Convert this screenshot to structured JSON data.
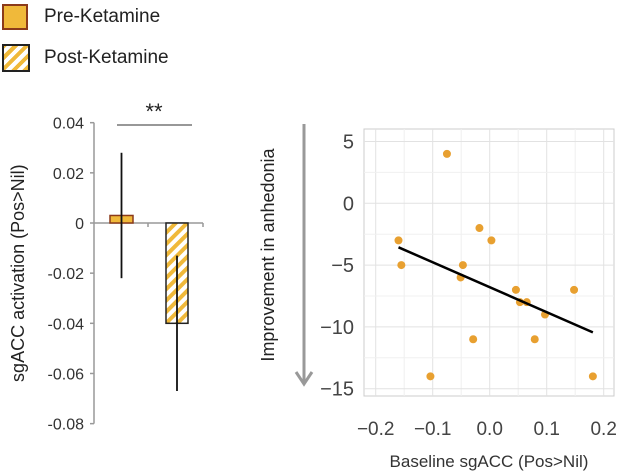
{
  "legend": [
    {
      "label": "Pre-Ketamine",
      "fill": "#f0b93a",
      "border": "#8b3a1a",
      "pattern": "solid"
    },
    {
      "label": "Post-Ketamine",
      "fill": "#f0b93a",
      "border": "#222222",
      "pattern": "hatched"
    }
  ],
  "chart_data": [
    {
      "type": "bar",
      "categories": [
        "Pre-Ketamine",
        "Post-Ketamine"
      ],
      "values": [
        0.003,
        -0.04
      ],
      "error_low": [
        -0.022,
        -0.067
      ],
      "error_high": [
        0.028,
        -0.013
      ],
      "ylabel": "sgACC activation (Pos>Nil)",
      "xlabel": "",
      "ylim": [
        -0.08,
        0.04
      ],
      "yticks": [
        "0.04",
        "0.02",
        "0",
        "-0.02",
        "-0.04",
        "-0.06",
        "-0.08"
      ],
      "ytick_values": [
        0.04,
        0.02,
        0,
        -0.02,
        -0.04,
        -0.06,
        -0.08
      ],
      "significance": "**"
    },
    {
      "type": "scatter",
      "xlabel": "Baseline sgACC (Pos>Nil)",
      "ylabel": "Improvement in anhedonia",
      "xlim": [
        -0.22,
        0.22
      ],
      "ylim": [
        -16,
        6
      ],
      "xticks": [
        "−0.2",
        "−0.1",
        "0.0",
        "0.1",
        "0.2"
      ],
      "xtick_values": [
        -0.2,
        -0.1,
        0.0,
        0.1,
        0.2
      ],
      "yticks": [
        "5",
        "0",
        "−5",
        "−10",
        "−15"
      ],
      "ytick_values": [
        5,
        0,
        -5,
        -10,
        -15
      ],
      "grid": true,
      "point_color": "#e8a030",
      "points": [
        {
          "x": -0.16,
          "y": -3
        },
        {
          "x": -0.155,
          "y": -5
        },
        {
          "x": -0.075,
          "y": 4
        },
        {
          "x": -0.104,
          "y": -14
        },
        {
          "x": -0.051,
          "y": -6
        },
        {
          "x": -0.047,
          "y": -5
        },
        {
          "x": -0.029,
          "y": -11
        },
        {
          "x": -0.018,
          "y": -2
        },
        {
          "x": 0.003,
          "y": -3
        },
        {
          "x": 0.046,
          "y": -7
        },
        {
          "x": 0.053,
          "y": -8
        },
        {
          "x": 0.065,
          "y": -8
        },
        {
          "x": 0.079,
          "y": -11
        },
        {
          "x": 0.097,
          "y": -9
        },
        {
          "x": 0.148,
          "y": -7
        },
        {
          "x": 0.181,
          "y": -14
        }
      ],
      "fit_line": {
        "x": [
          -0.16,
          0.181
        ],
        "y": [
          -3.56,
          -10.44
        ]
      }
    }
  ]
}
